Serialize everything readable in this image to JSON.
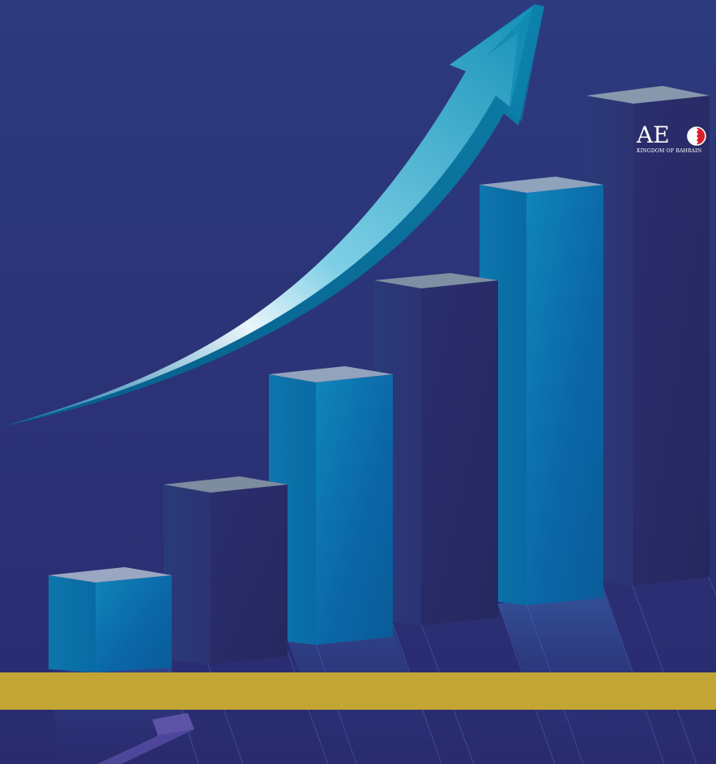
{
  "logo": {
    "brand_letters": "AE",
    "brand_circle_letter": "O",
    "country": "KINGDOM OF BAHRAIN"
  },
  "colors": {
    "background": "#2b3378",
    "gold_band": "#c2a535",
    "teal_bar": "#0e7fb5",
    "navy_bar": "#2a2a66",
    "bar_top": "#8a9bb0",
    "arrow": "#1aa3c4",
    "logo_red": "#d9202a"
  },
  "icons": [
    "growth-arrow-icon",
    "aeo-logo"
  ],
  "graphic": {
    "type": "decorative bar graph",
    "bar_count": 6,
    "relative_heights": [
      0.11,
      0.22,
      0.34,
      0.44,
      0.54,
      0.64
    ],
    "bar_colors": [
      "teal",
      "navy",
      "teal",
      "navy",
      "teal",
      "navy"
    ],
    "has_upward_arrow": true
  }
}
